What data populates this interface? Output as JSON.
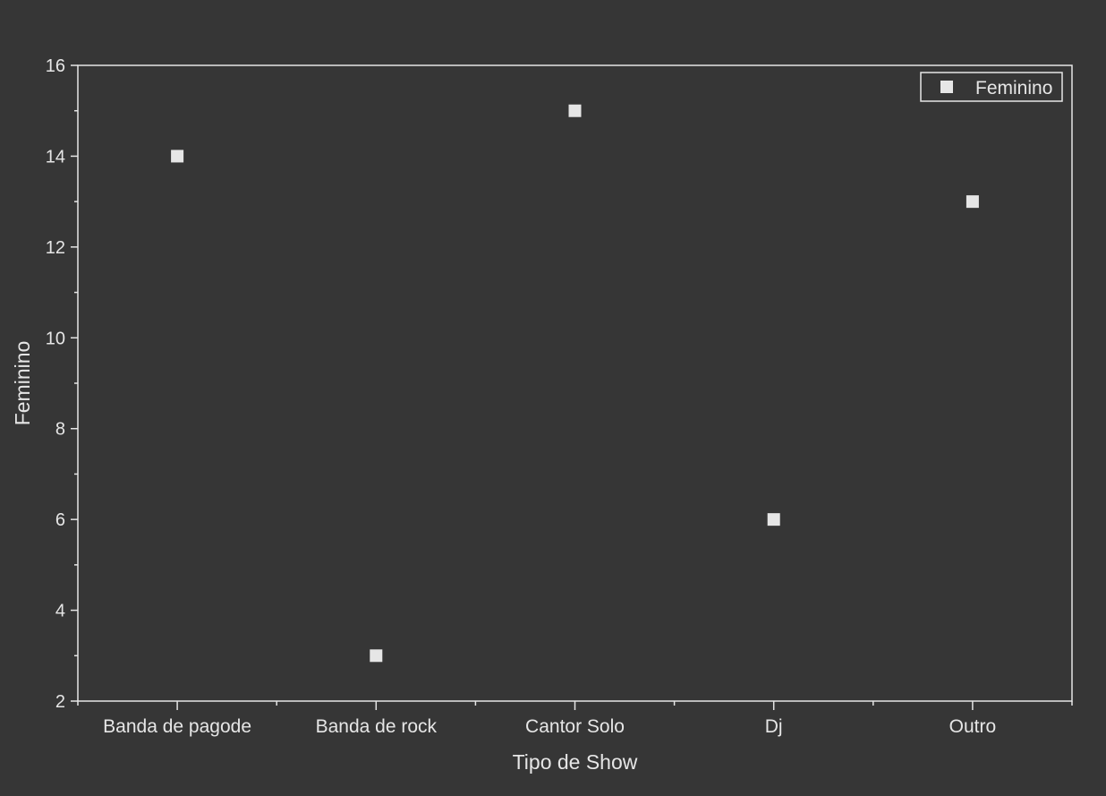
{
  "chart_data": {
    "type": "scatter",
    "title": "",
    "xlabel": "Tipo de Show",
    "ylabel": "Feminino",
    "categories": [
      "Banda de pagode",
      "Banda de rock",
      "Cantor Solo",
      "Dj",
      "Outro"
    ],
    "series": [
      {
        "name": "Feminino",
        "values": [
          14,
          3,
          15,
          6,
          13
        ],
        "color": "#e6e6e6",
        "marker": "square"
      }
    ],
    "ylim": [
      2,
      16
    ],
    "yticks": [
      2,
      4,
      6,
      8,
      10,
      12,
      14,
      16
    ],
    "grid": false,
    "legend_position": "top-right"
  },
  "colors": {
    "background": "#363636",
    "foreground": "#e6e6e6"
  }
}
